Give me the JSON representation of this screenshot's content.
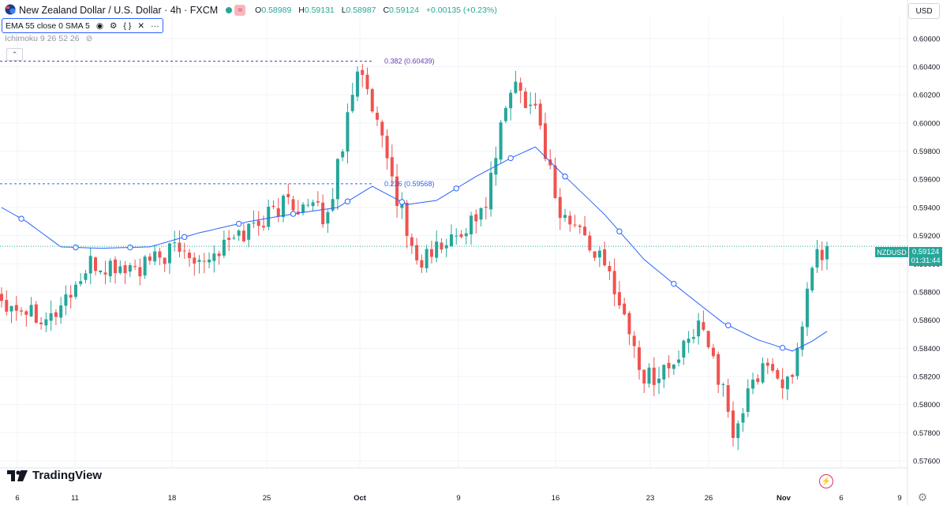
{
  "header": {
    "title": "New Zealand Dollar / U.S. Dollar · 4h · FXCM",
    "ohlc": {
      "o_label": "O",
      "o": "0.58989",
      "h_label": "H",
      "h": "0.59131",
      "l_label": "L",
      "l": "0.58987",
      "c_label": "C",
      "c": "0.59124",
      "change": "+0.00135 (+0.23%)"
    }
  },
  "indicators": {
    "ema": "EMA 55 close 0 SMA 5",
    "ichimoku": "Ichimoku 9 26 52 26"
  },
  "currency_button": "USD",
  "price_badge": {
    "symbol": "NZDUSD",
    "price": "0.59124",
    "countdown": "01:31:44"
  },
  "logo_text": "TradingView",
  "icons": [
    "eye-icon",
    "gear-icon",
    "braces-icon",
    "close-icon",
    "more-icon",
    "eye-off-icon",
    "flag-icon",
    "flash-icon"
  ],
  "colors": {
    "up": "#26a69a",
    "down": "#ef5350",
    "ema": "#2962ff",
    "fib_382": "#673ab7",
    "fib_236": "#2962ff"
  },
  "chart_data": {
    "type": "candlestick",
    "ylim": [
      0.5755,
      0.6075
    ],
    "y_ticks": [
      "0.60600",
      "0.60400",
      "0.60200",
      "0.60000",
      "0.59800",
      "0.59600",
      "0.59400",
      "0.59200",
      "0.59000",
      "0.58800",
      "0.58600",
      "0.58400",
      "0.58200",
      "0.58000",
      "0.57800",
      "0.57600"
    ],
    "x_ticks": [
      "6",
      "11",
      "18",
      "25",
      "Oct",
      "9",
      "16",
      "23",
      "26",
      "Nov",
      "6",
      "9"
    ],
    "candle_count": 168,
    "last_close": 0.59124,
    "ohlc_anchors": [
      [
        0,
        0.5875
      ],
      [
        10,
        0.5862
      ],
      [
        18,
        0.5898
      ],
      [
        28,
        0.5896
      ],
      [
        35,
        0.591
      ],
      [
        42,
        0.5905
      ],
      [
        50,
        0.5925
      ],
      [
        58,
        0.5945
      ],
      [
        66,
        0.5933
      ],
      [
        72,
        0.6042
      ],
      [
        78,
        0.5972
      ],
      [
        84,
        0.59
      ],
      [
        92,
        0.592
      ],
      [
        98,
        0.5942
      ],
      [
        103,
        0.6028
      ],
      [
        108,
        0.6012
      ],
      [
        113,
        0.5935
      ],
      [
        118,
        0.592
      ],
      [
        124,
        0.5885
      ],
      [
        130,
        0.5818
      ],
      [
        136,
        0.5828
      ],
      [
        142,
        0.586
      ],
      [
        148,
        0.578
      ],
      [
        154,
        0.583
      ],
      [
        160,
        0.5812
      ],
      [
        164,
        0.59
      ],
      [
        167,
        0.59124
      ]
    ],
    "ema55_anchors": [
      [
        0,
        0.594
      ],
      [
        5,
        0.593
      ],
      [
        12,
        0.5912
      ],
      [
        20,
        0.5911
      ],
      [
        30,
        0.5912
      ],
      [
        40,
        0.5922
      ],
      [
        50,
        0.593
      ],
      [
        60,
        0.5936
      ],
      [
        68,
        0.594
      ],
      [
        75,
        0.5955
      ],
      [
        82,
        0.5942
      ],
      [
        88,
        0.5945
      ],
      [
        96,
        0.5962
      ],
      [
        103,
        0.5975
      ],
      [
        108,
        0.5983
      ],
      [
        114,
        0.5962
      ],
      [
        122,
        0.5935
      ],
      [
        130,
        0.5903
      ],
      [
        138,
        0.588
      ],
      [
        146,
        0.5858
      ],
      [
        153,
        0.5846
      ],
      [
        160,
        0.5838
      ],
      [
        164,
        0.5845
      ],
      [
        167,
        0.5852
      ]
    ],
    "fibonacci": [
      {
        "label": "0.382 (0.60439)",
        "level": 0.60439
      },
      {
        "label": "0.236 (0.59568)",
        "level": 0.59568
      }
    ],
    "current_price_line": 0.59124
  }
}
